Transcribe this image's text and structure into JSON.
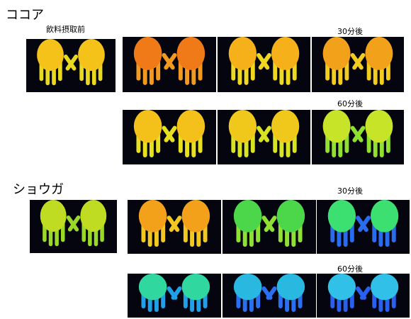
{
  "sections": [
    {
      "title": "ココア",
      "before_label": "飲料摂取前",
      "after30_label": "30分後",
      "after60_label": "60分後"
    },
    {
      "title": "ショウガ",
      "after30_label": "30分後",
      "after60_label": "60分後"
    }
  ]
}
